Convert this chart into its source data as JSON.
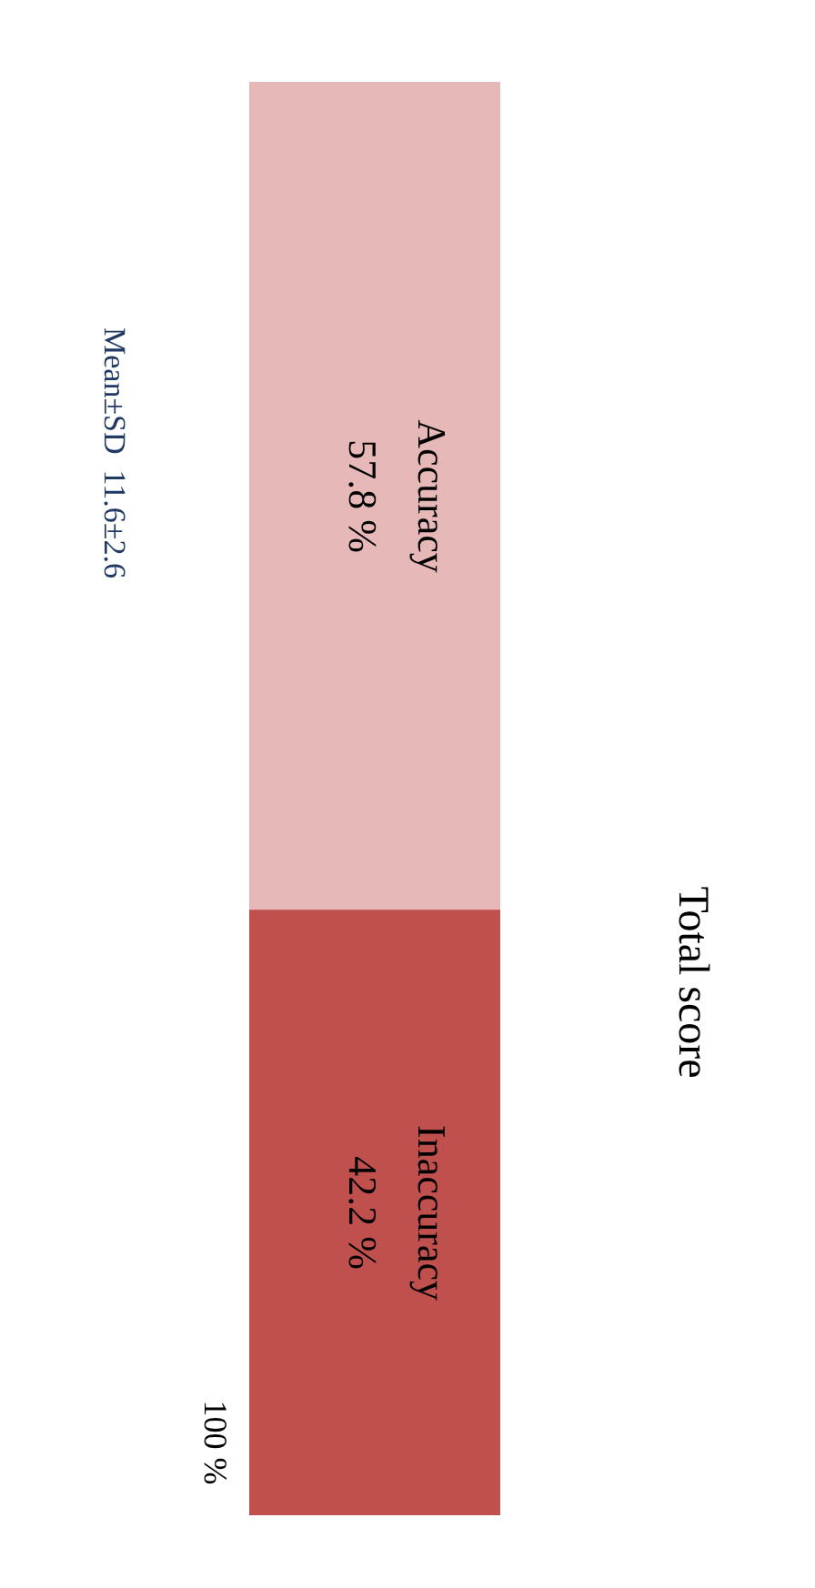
{
  "chart_data": {
    "type": "bar",
    "stacked": true,
    "title": "Total score",
    "annotations": [
      "Mean±SD  11.6±2.6",
      "100 %"
    ],
    "categories": [
      null
    ],
    "series": [
      {
        "name": "Inaccuracy",
        "color": "#c0504d",
        "values": [
          42.2
        ],
        "value_labels": [
          "42.2 %"
        ]
      },
      {
        "name": "Accuracy",
        "color": "#e6b8b7",
        "values": [
          57.8
        ],
        "value_labels": [
          "57.8 %"
        ]
      }
    ],
    "legend": false
  }
}
